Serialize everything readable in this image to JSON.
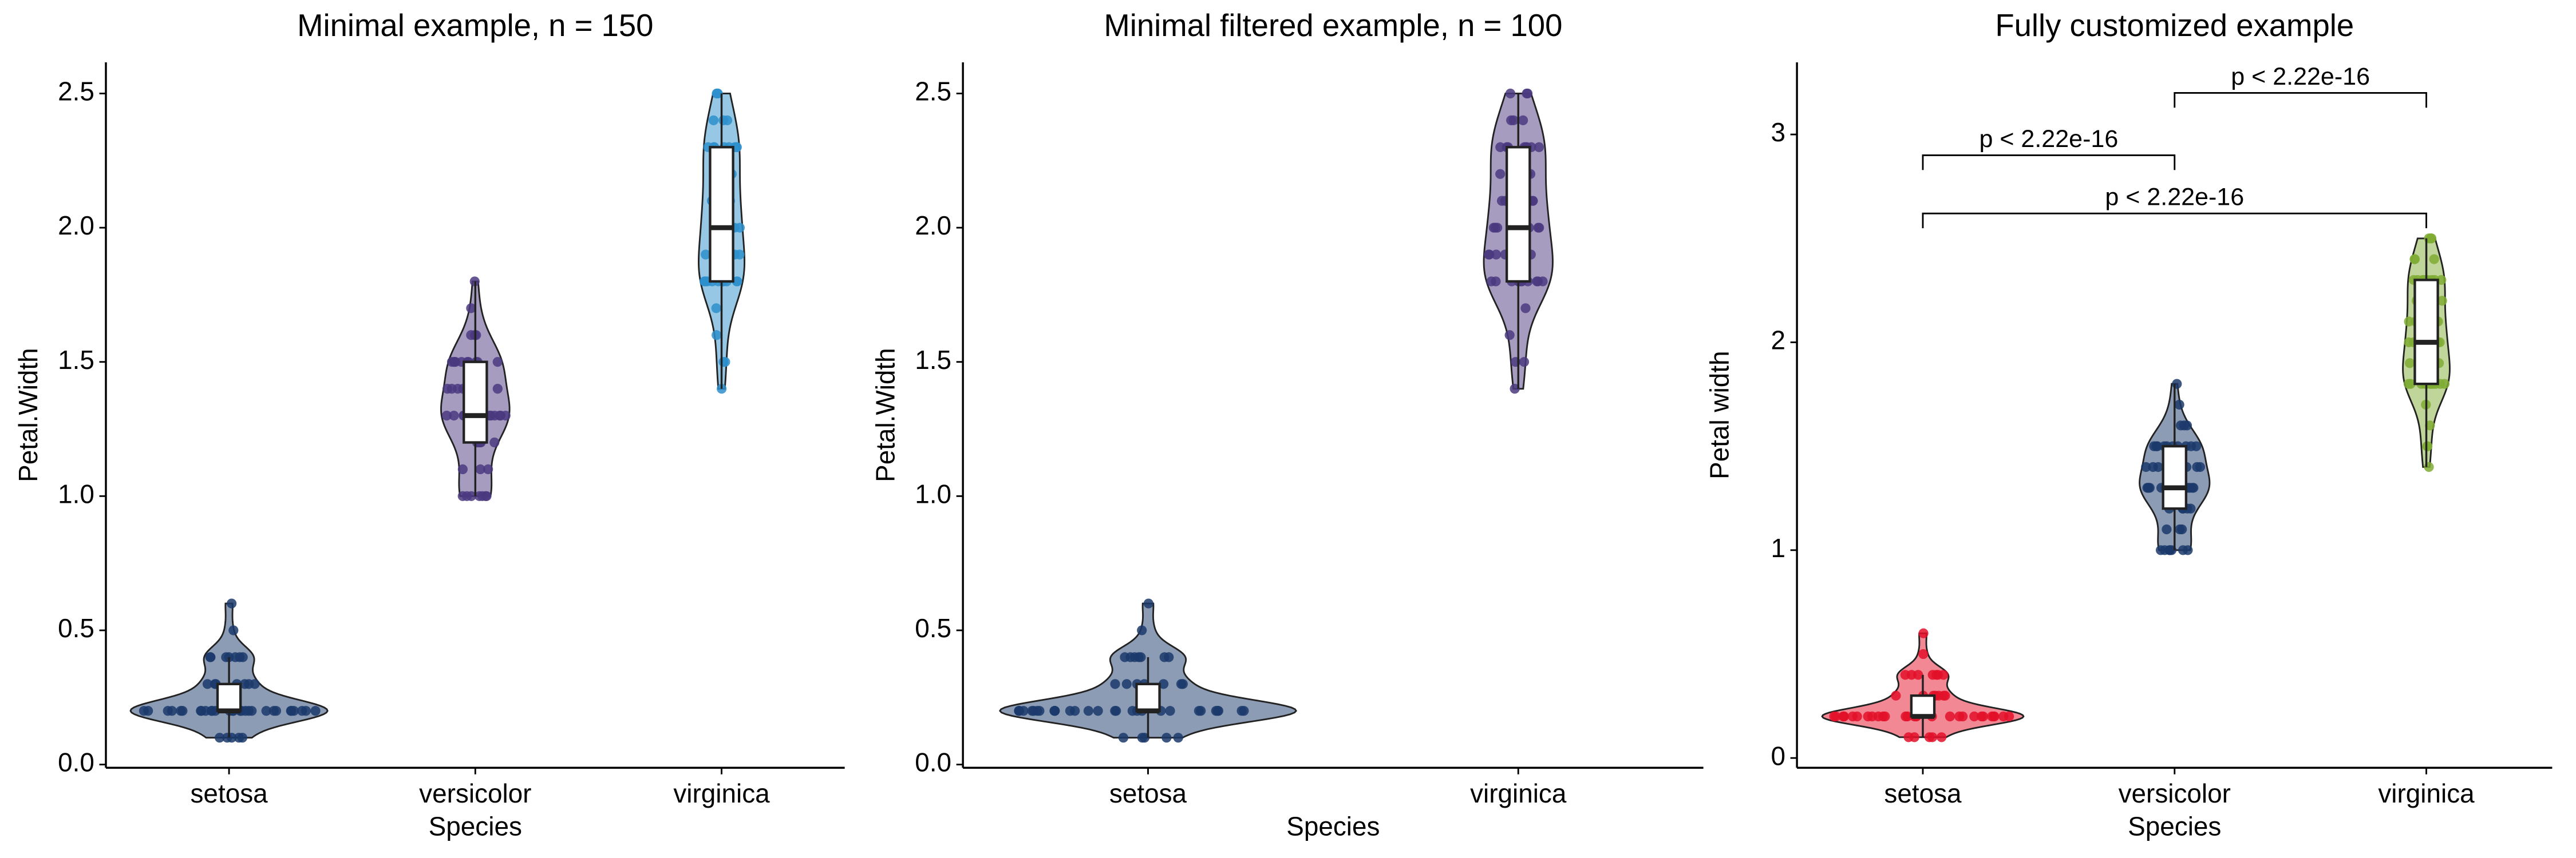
{
  "chart_data": [
    {
      "type": "violin",
      "title": "Minimal example, n = 150",
      "x_label": "Species",
      "y_label": "Petal.Width",
      "ylim": [
        -0.012,
        2.616
      ],
      "yticks": [
        {
          "value": 0,
          "label": "0.0"
        },
        {
          "value": 0.5,
          "label": "0.5"
        },
        {
          "value": 1,
          "label": "1.0"
        },
        {
          "value": 1.5,
          "label": "1.5"
        },
        {
          "value": 2,
          "label": "2.0"
        },
        {
          "value": 2.5,
          "label": "2.5"
        }
      ],
      "groups": [
        {
          "name": "setosa",
          "color": "#1b3a6b",
          "box": {
            "min": 0.1,
            "q1": 0.2,
            "median": 0.2,
            "q3": 0.3,
            "max": 0.4
          },
          "point_values": [
            0.1,
            0.2,
            0.3,
            0.4,
            0.5,
            0.6
          ],
          "point_counts": [
            5,
            29,
            7,
            7,
            1,
            1
          ]
        },
        {
          "name": "versicolor",
          "color": "#4b3a80",
          "box": {
            "min": 1.0,
            "q1": 1.2,
            "median": 1.3,
            "q3": 1.5,
            "max": 1.8
          },
          "point_values": [
            1.0,
            1.1,
            1.2,
            1.3,
            1.4,
            1.5,
            1.6,
            1.7,
            1.8
          ],
          "point_counts": [
            7,
            3,
            5,
            13,
            7,
            10,
            3,
            1,
            1
          ]
        },
        {
          "name": "virginica",
          "color": "#2e8fcc",
          "box": {
            "min": 1.4,
            "q1": 1.8,
            "median": 2.0,
            "q3": 2.3,
            "max": 2.5
          },
          "point_values": [
            1.4,
            1.5,
            1.6,
            1.7,
            1.8,
            1.9,
            2.0,
            2.1,
            2.2,
            2.3,
            2.4,
            2.5
          ],
          "point_counts": [
            1,
            2,
            1,
            1,
            11,
            5,
            6,
            6,
            3,
            8,
            3,
            3
          ]
        }
      ]
    },
    {
      "type": "violin",
      "title": "Minimal filtered example, n = 100",
      "x_label": "Species",
      "y_label": "Petal.Width",
      "ylim": [
        -0.012,
        2.616
      ],
      "yticks": [
        {
          "value": 0,
          "label": "0.0"
        },
        {
          "value": 0.5,
          "label": "0.5"
        },
        {
          "value": 1,
          "label": "1.0"
        },
        {
          "value": 1.5,
          "label": "1.5"
        },
        {
          "value": 2,
          "label": "2.0"
        },
        {
          "value": 2.5,
          "label": "2.5"
        }
      ],
      "groups": [
        {
          "name": "setosa",
          "color": "#1b3a6b",
          "box": {
            "min": 0.1,
            "q1": 0.2,
            "median": 0.2,
            "q3": 0.3,
            "max": 0.4
          },
          "point_values": [
            0.1,
            0.2,
            0.3,
            0.4,
            0.5,
            0.6
          ],
          "point_counts": [
            5,
            29,
            7,
            7,
            1,
            1
          ]
        },
        {
          "name": "virginica",
          "color": "#4b3a80",
          "box": {
            "min": 1.4,
            "q1": 1.8,
            "median": 2.0,
            "q3": 2.3,
            "max": 2.5
          },
          "point_values": [
            1.4,
            1.5,
            1.6,
            1.7,
            1.8,
            1.9,
            2.0,
            2.1,
            2.2,
            2.3,
            2.4,
            2.5
          ],
          "point_counts": [
            1,
            2,
            1,
            1,
            11,
            5,
            6,
            6,
            3,
            8,
            3,
            3
          ]
        }
      ]
    },
    {
      "type": "violin",
      "title": "Fully customized example",
      "x_label": "Species",
      "y_label": "Petal width",
      "ylim": [
        -0.047,
        3.347
      ],
      "yticks": [
        0,
        1,
        2,
        3
      ],
      "groups": [
        {
          "name": "setosa",
          "color": "#e3112a",
          "box": {
            "min": 0.1,
            "q1": 0.2,
            "median": 0.2,
            "q3": 0.3,
            "max": 0.4
          },
          "point_values": [
            0.1,
            0.2,
            0.3,
            0.4,
            0.5,
            0.6
          ],
          "point_counts": [
            5,
            29,
            7,
            7,
            1,
            1
          ]
        },
        {
          "name": "versicolor",
          "color": "#1b3a6b",
          "box": {
            "min": 1.0,
            "q1": 1.2,
            "median": 1.3,
            "q3": 1.5,
            "max": 1.8
          },
          "point_values": [
            1.0,
            1.1,
            1.2,
            1.3,
            1.4,
            1.5,
            1.6,
            1.7,
            1.8
          ],
          "point_counts": [
            7,
            3,
            5,
            13,
            7,
            10,
            3,
            1,
            1
          ]
        },
        {
          "name": "virginica",
          "color": "#7fab33",
          "box": {
            "min": 1.4,
            "q1": 1.8,
            "median": 2.0,
            "q3": 2.3,
            "max": 2.5
          },
          "point_values": [
            1.4,
            1.5,
            1.6,
            1.7,
            1.8,
            1.9,
            2.0,
            2.1,
            2.2,
            2.3,
            2.4,
            2.5
          ],
          "point_counts": [
            1,
            2,
            1,
            1,
            11,
            5,
            6,
            6,
            3,
            8,
            3,
            3
          ]
        }
      ],
      "comparisons": [
        {
          "from": "setosa",
          "to": "versicolor",
          "y": 2.9,
          "label": "p < 2.22e-16"
        },
        {
          "from": "versicolor",
          "to": "virginica",
          "y": 3.2,
          "label": "p < 2.22e-16"
        },
        {
          "from": "setosa",
          "to": "virginica",
          "y": 2.62,
          "label": "p < 2.22e-16"
        }
      ]
    }
  ]
}
